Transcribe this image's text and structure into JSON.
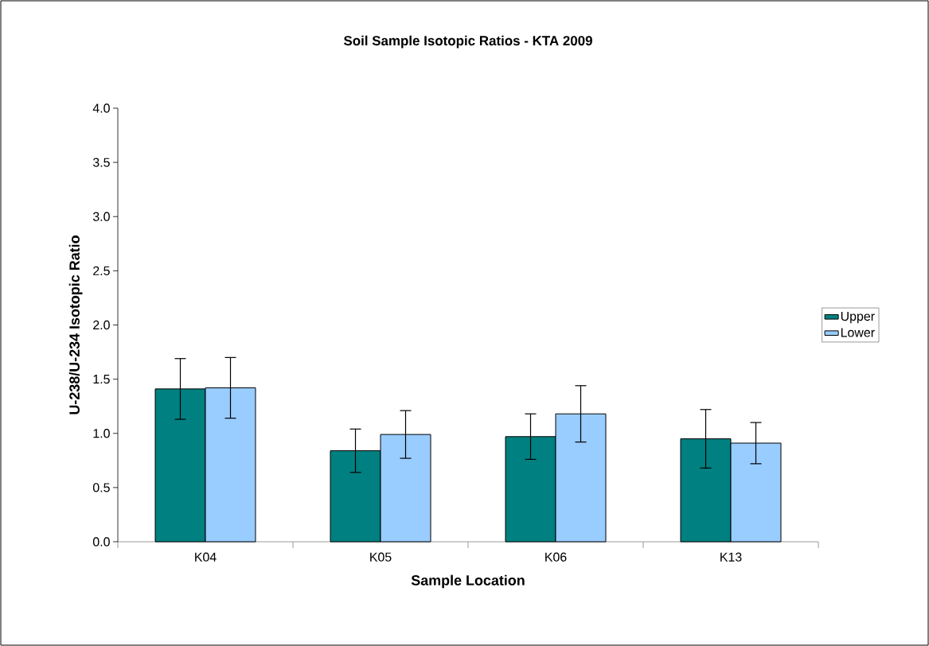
{
  "chart_data": {
    "type": "bar",
    "title": "Soil Sample Isotopic Ratios - KTA 2009",
    "xlabel": "Sample Location",
    "ylabel": "U-238/U-234 Isotopic Ratio",
    "categories": [
      "K04",
      "K05",
      "K06",
      "K13"
    ],
    "series": [
      {
        "name": "Upper",
        "color": "#008080",
        "values": [
          1.41,
          0.84,
          0.97,
          0.95
        ],
        "errors": [
          0.28,
          0.2,
          0.21,
          0.27
        ]
      },
      {
        "name": "Lower",
        "color": "#99ccff",
        "values": [
          1.42,
          0.99,
          1.18,
          0.91
        ],
        "errors": [
          0.28,
          0.22,
          0.26,
          0.19
        ]
      }
    ],
    "ylim": [
      0,
      4
    ],
    "yticks": [
      {
        "value": 0,
        "label": "0.0"
      },
      {
        "value": 0.5,
        "label": "0.5"
      },
      {
        "value": 1,
        "label": "1.0"
      },
      {
        "value": 1.5,
        "label": "1.5"
      },
      {
        "value": 2,
        "label": "2.0"
      },
      {
        "value": 2.5,
        "label": "2.5"
      },
      {
        "value": 3,
        "label": "3.0"
      },
      {
        "value": 3.5,
        "label": "3.5"
      },
      {
        "value": 4,
        "label": "4.0"
      }
    ],
    "legend": "right",
    "grid": false
  }
}
